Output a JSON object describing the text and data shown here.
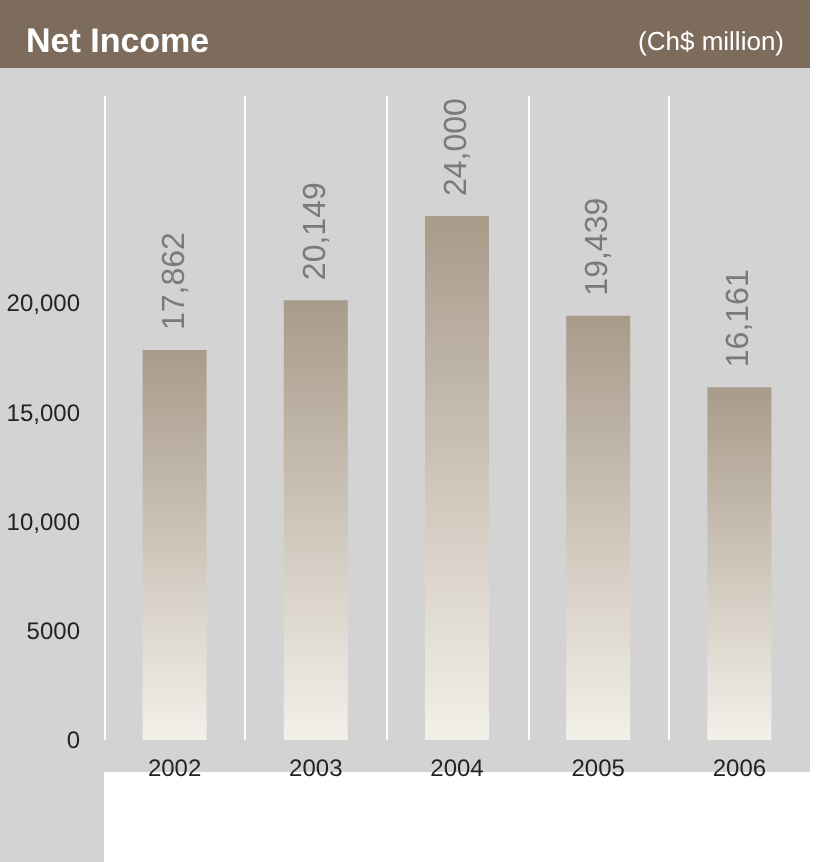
{
  "chart_data": {
    "type": "bar",
    "title": "Net Income",
    "subtitle": "(Ch$ million)",
    "categories": [
      "2002",
      "2003",
      "2004",
      "2005",
      "2006"
    ],
    "values": [
      17862,
      20149,
      24000,
      19439,
      16161
    ],
    "value_labels": [
      "17,862",
      "20,149",
      "24,000",
      "19,439",
      "16,161"
    ],
    "color": "#a89b8a",
    "ylim": [
      0,
      29500
    ],
    "yticks": [
      0,
      5000,
      {
        "value": 10000,
        "label": "10,000"
      },
      {
        "value": 15000,
        "label": "15,000"
      },
      {
        "value": 20000,
        "label": "20,000"
      }
    ],
    "grid": "x"
  }
}
